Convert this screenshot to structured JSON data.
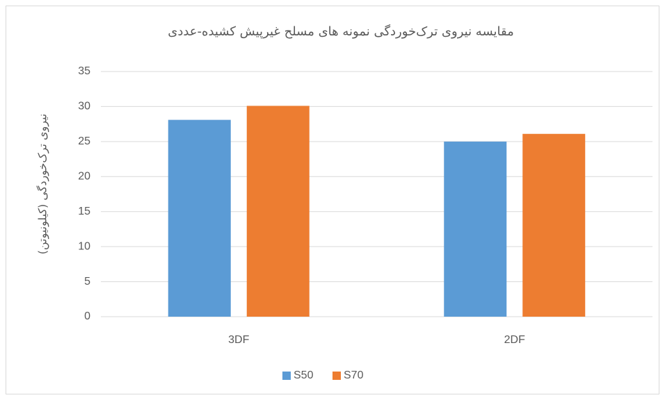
{
  "chart_data": {
    "type": "bar",
    "title": "مقایسه نیروی ترک‌خوردگی نمونه های مسلح غیرپیش کشیده-عددی",
    "y_label": "نیروی ترک‌خوردگی (کیلونیوتن)",
    "categories": [
      "3DF",
      "2DF"
    ],
    "series": [
      {
        "name": "S50",
        "color": "#5b9bd5",
        "values": [
          28.1,
          25.0
        ]
      },
      {
        "name": "S70",
        "color": "#ed7d31",
        "values": [
          30.1,
          26.1
        ]
      }
    ],
    "ylim": [
      0,
      35
    ],
    "yticks": [
      0,
      5,
      10,
      15,
      20,
      25,
      30,
      35
    ],
    "grid": true,
    "legend": "bottom"
  }
}
